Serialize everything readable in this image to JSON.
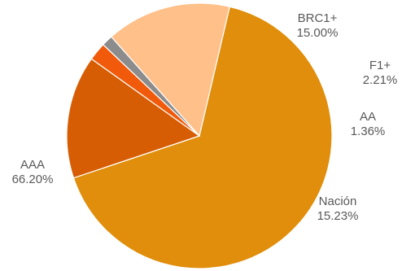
{
  "chart_data": {
    "type": "pie",
    "slices": [
      {
        "label": "AAA",
        "value": 66.2,
        "value_text": "66.20%",
        "color": "#E08E0B"
      },
      {
        "label": "BRC1+",
        "value": 15.0,
        "value_text": "15.00%",
        "color": "#D65D03"
      },
      {
        "label": "F1+",
        "value": 2.21,
        "value_text": "2.21%",
        "color": "#F05A0A"
      },
      {
        "label": "AA",
        "value": 1.36,
        "value_text": "1.36%",
        "color": "#8C8C8C"
      },
      {
        "label": "Nación",
        "value": 15.23,
        "value_text": "15.23%",
        "color": "#FFC08A"
      }
    ],
    "legend": "none",
    "label_color": "#595959"
  }
}
